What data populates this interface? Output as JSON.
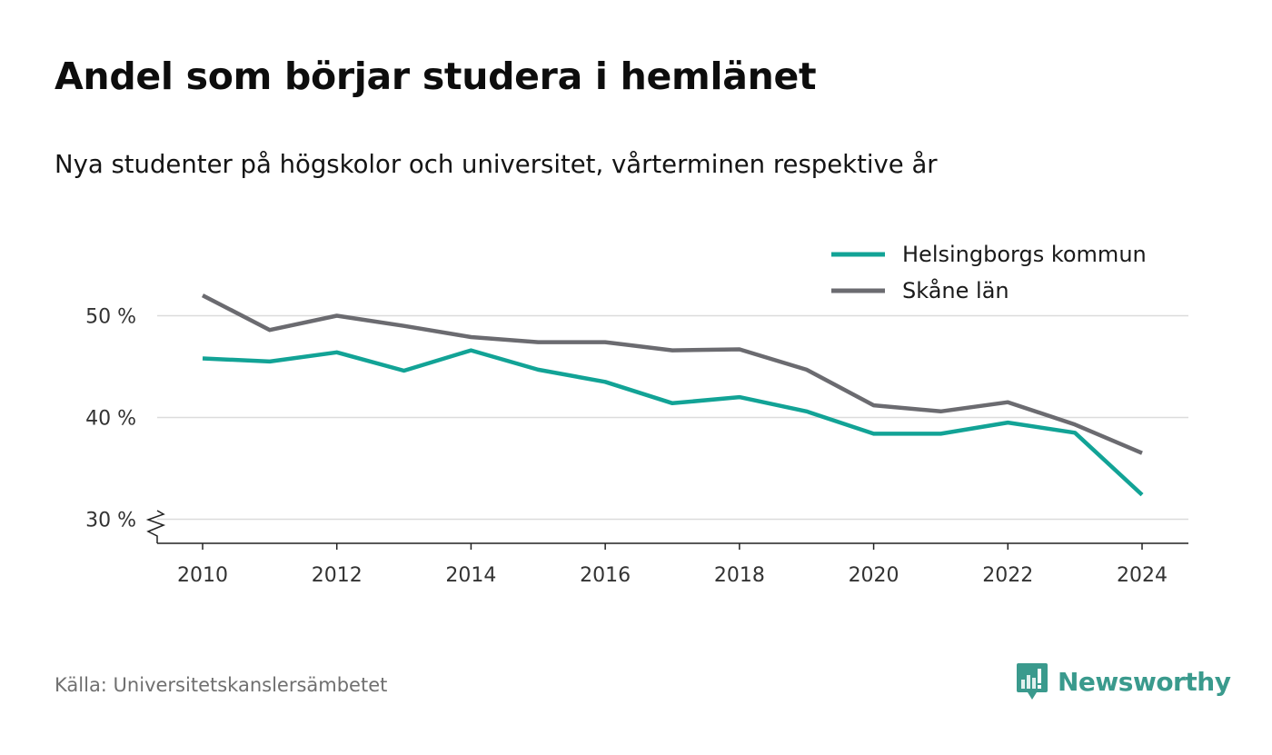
{
  "title": "Andel som börjar studera i hemlänet",
  "subtitle": "Nya studenter på högskolor och universitet, vårterminen respektive år",
  "source": "Källa: Universitetskanslersämbetet",
  "brand": {
    "name": "Newsworthy",
    "icon": "newsworthy-logo-icon",
    "color": "#3a9a8d"
  },
  "chart_data": {
    "type": "line",
    "x": [
      2010,
      2011,
      2012,
      2013,
      2014,
      2015,
      2016,
      2017,
      2018,
      2019,
      2020,
      2021,
      2022,
      2023,
      2024
    ],
    "series": [
      {
        "name": "Helsingborgs kommun",
        "color": "#12a396",
        "values": [
          45.8,
          45.5,
          46.4,
          44.6,
          46.6,
          44.7,
          43.5,
          41.4,
          42.0,
          40.6,
          38.4,
          38.4,
          39.5,
          38.5,
          32.4
        ]
      },
      {
        "name": "Skåne län",
        "color": "#6b6b70",
        "values": [
          52.0,
          48.6,
          50.0,
          49.0,
          47.9,
          47.4,
          47.4,
          46.6,
          46.7,
          44.7,
          41.2,
          40.6,
          41.5,
          39.3,
          36.5
        ]
      }
    ],
    "xticks": [
      2010,
      2012,
      2014,
      2016,
      2018,
      2020,
      2022,
      2024
    ],
    "yticks": [
      30,
      40,
      50
    ],
    "ytick_labels": [
      "30 %",
      "40 %",
      "50 %"
    ],
    "ylim": [
      28,
      52
    ],
    "xlim": [
      2009.3,
      2024.7
    ],
    "xlabel": "",
    "ylabel": "",
    "grid": "horizontal",
    "legend_position": "top-right",
    "axis_break": true
  }
}
